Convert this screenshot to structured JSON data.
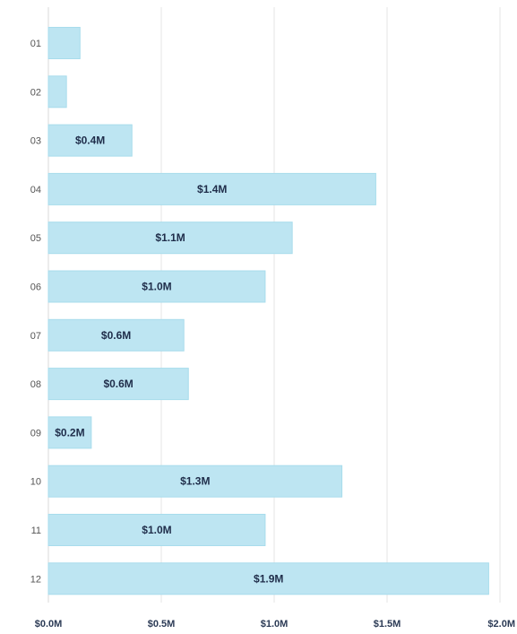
{
  "chart_data": {
    "type": "bar",
    "orientation": "horizontal",
    "categories": [
      "01",
      "02",
      "03",
      "04",
      "05",
      "06",
      "07",
      "08",
      "09",
      "10",
      "11",
      "12"
    ],
    "values": [
      0.14,
      0.08,
      0.37,
      1.45,
      1.08,
      0.96,
      0.6,
      0.62,
      0.19,
      1.3,
      0.96,
      1.95
    ],
    "data_labels": [
      "",
      "",
      "$0.4M",
      "$1.4M",
      "$1.1M",
      "$1.0M",
      "$0.6M",
      "$0.6M",
      "$0.2M",
      "$1.3M",
      "$1.0M",
      "$1.9M"
    ],
    "x_ticks": [
      0,
      0.5,
      1.0,
      1.5,
      2.0
    ],
    "x_tick_labels": [
      "$0.0M",
      "$0.5M",
      "$1.0M",
      "$1.5M",
      "$2.0M"
    ],
    "xlim": [
      0,
      2.0
    ],
    "grid": true,
    "bar_color": "#bde5f2",
    "title": "",
    "xlabel": "",
    "ylabel": ""
  }
}
